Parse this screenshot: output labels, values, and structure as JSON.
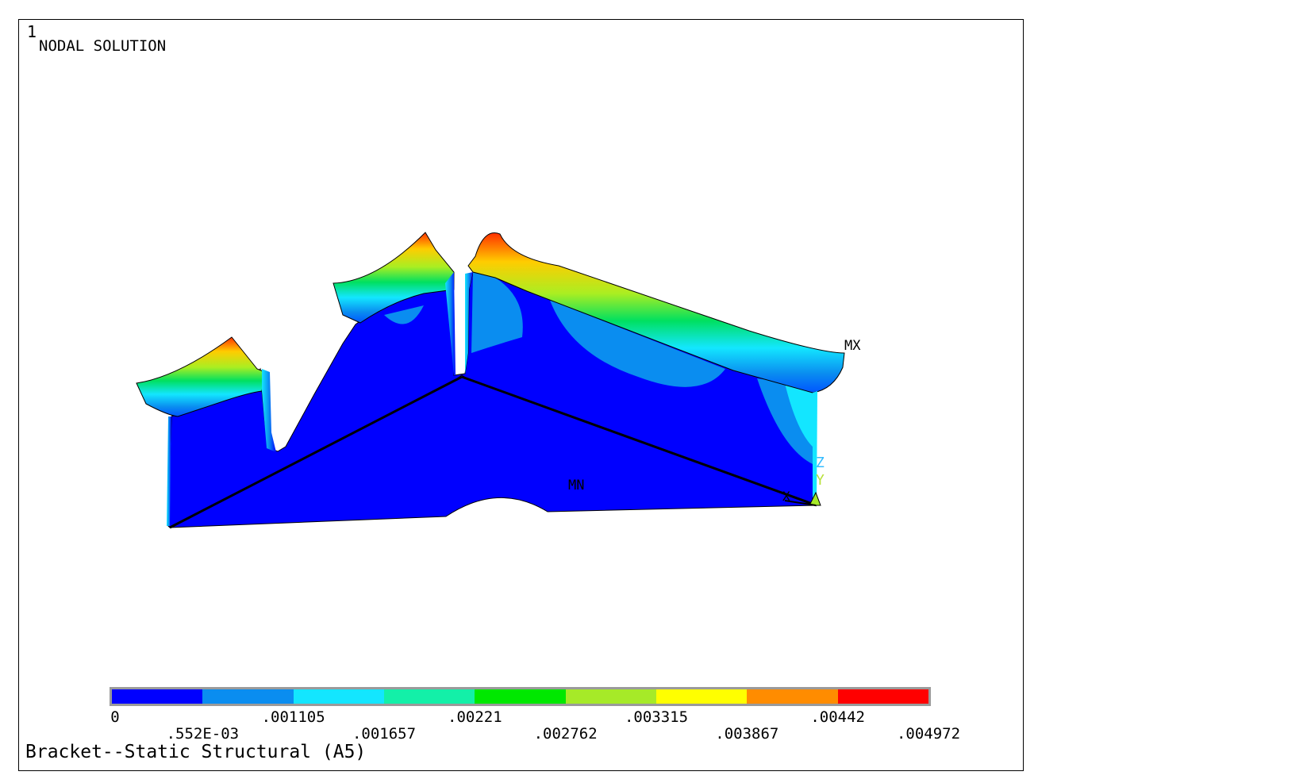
{
  "window_number": "1",
  "title": "NODAL SOLUTION",
  "footer": "Bracket--Static Structural (A5)",
  "labels": {
    "max": "MX",
    "min": "MN"
  },
  "triad": {
    "z": "Z",
    "y": "Y",
    "x": "X"
  },
  "colors": {
    "z_axis": "#33bbff",
    "y_axis": "#b8e03a",
    "window_number": "#40e0ff",
    "frame": "#000000",
    "legend_border": "#9a9a9a"
  },
  "legend": {
    "colors": [
      "#0000ff",
      "#0a8df0",
      "#13e6ff",
      "#13f0a8",
      "#00e800",
      "#a6ea28",
      "#ffff00",
      "#ff8c00",
      "#ff0000"
    ],
    "values_upper": [
      "0",
      ".001105",
      ".00221",
      ".003315",
      ".00442"
    ],
    "values_lower": [
      ".552E-03",
      ".001657",
      ".002762",
      ".003867",
      ".004972"
    ]
  }
}
